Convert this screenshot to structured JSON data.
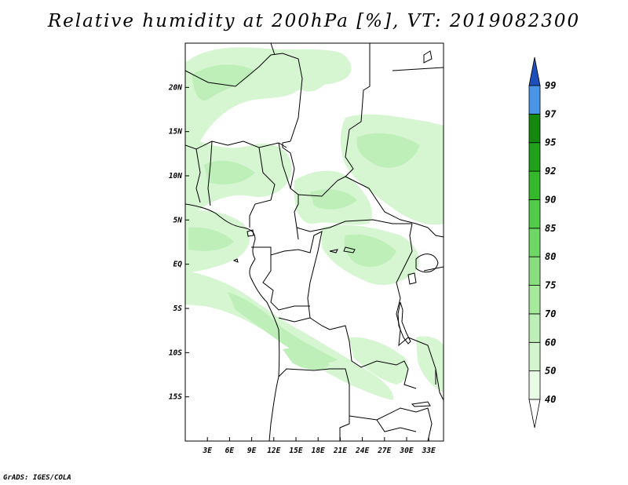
{
  "title": "Relative humidity at 200hPa [%], VT: 2019082300",
  "credit": "GrADS: IGES/COLA",
  "map": {
    "projection": "lat-lon",
    "lon_range": [
      0,
      35
    ],
    "lat_range": [
      -20,
      25
    ],
    "lon_ticks": [
      {
        "value": 3,
        "label": "3E"
      },
      {
        "value": 6,
        "label": "6E"
      },
      {
        "value": 9,
        "label": "9E"
      },
      {
        "value": 12,
        "label": "12E"
      },
      {
        "value": 15,
        "label": "15E"
      },
      {
        "value": 18,
        "label": "18E"
      },
      {
        "value": 21,
        "label": "21E"
      },
      {
        "value": 24,
        "label": "24E"
      },
      {
        "value": 27,
        "label": "27E"
      },
      {
        "value": 30,
        "label": "30E"
      },
      {
        "value": 33,
        "label": "33E"
      }
    ],
    "lat_ticks": [
      {
        "value": 20,
        "label": "20N"
      },
      {
        "value": 15,
        "label": "15N"
      },
      {
        "value": 10,
        "label": "10N"
      },
      {
        "value": 5,
        "label": "5N"
      },
      {
        "value": 0,
        "label": "EQ"
      },
      {
        "value": -5,
        "label": "5S"
      },
      {
        "value": -10,
        "label": "10S"
      },
      {
        "value": -15,
        "label": "15S"
      }
    ]
  },
  "colorbar": {
    "levels": [
      {
        "label": "40",
        "color": "#e8fae6"
      },
      {
        "label": "50",
        "color": "#d2f5cd"
      },
      {
        "label": "60",
        "color": "#bfefb9"
      },
      {
        "label": "70",
        "color": "#a6e89c"
      },
      {
        "label": "75",
        "color": "#8bde80"
      },
      {
        "label": "80",
        "color": "#6fd765"
      },
      {
        "label": "85",
        "color": "#52cc48"
      },
      {
        "label": "90",
        "color": "#35b82c"
      },
      {
        "label": "92",
        "color": "#21a01a"
      },
      {
        "label": "95",
        "color": "#15880f"
      },
      {
        "label": "97",
        "color": "#4a95e8"
      },
      {
        "label": "99",
        "color": "#2a6fd6"
      }
    ],
    "top_color": "#1d4fb8",
    "bottom_color": "#ffffff"
  }
}
